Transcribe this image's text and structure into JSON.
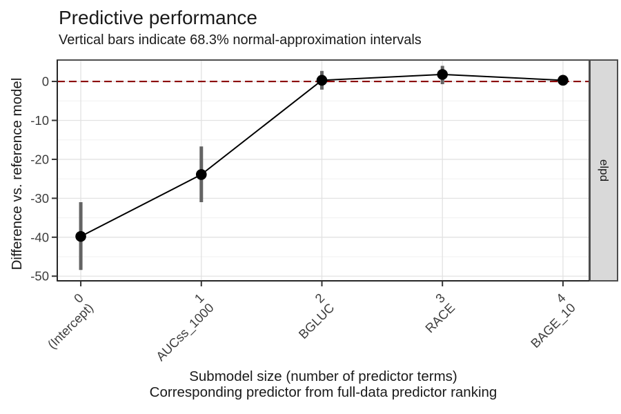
{
  "chart_data": {
    "type": "line",
    "title": "Predictive performance",
    "subtitle": "Vertical bars indicate 68.3% normal-approximation intervals",
    "xlabel": "Submodel size (number of predictor terms)",
    "xlabel2": "Corresponding predictor from full-data predictor ranking",
    "ylabel": "Difference vs. reference model",
    "facet_label": "elpd",
    "x": [
      0,
      1,
      2,
      3,
      4
    ],
    "categories": [
      "(Intercept)",
      "AUCss_1000",
      "BGLUC",
      "RACE",
      "BAGE_10"
    ],
    "series": [
      {
        "name": "elpd-difference",
        "values": [
          -39.8,
          -23.9,
          0.3,
          1.8,
          0.3
        ],
        "ci_lower": [
          -48.4,
          -31.0,
          -2.1,
          -0.7,
          -1.0
        ],
        "ci_upper": [
          -31.0,
          -16.7,
          2.7,
          4.0,
          1.6
        ]
      }
    ],
    "reference_line_y": 0,
    "y_ticks": [
      0,
      -10,
      -20,
      -30,
      -40,
      -50
    ],
    "y_minor_ticks": [
      -5,
      -15,
      -25,
      -35,
      -45
    ],
    "ylim": [
      -51.2,
      5.5
    ],
    "xlim": [
      -0.195,
      4.218
    ],
    "grid": "horizontal major+minor, vertical major only",
    "legend": "none",
    "colors": {
      "reference_line": "#8B0000",
      "line": "#000000",
      "point": "#000000",
      "interval": "#646464",
      "grid_major": "#e2e2e2",
      "grid_minor": "#f0f0f0",
      "panel_border": "#4d4d4d",
      "axis_line": "#262626",
      "tick": "#333333",
      "axis_text": "#3d3d3d",
      "strip_bg": "#d9d9d9",
      "strip_border": "#4d4d4d",
      "text": "#1a1a1a"
    }
  }
}
